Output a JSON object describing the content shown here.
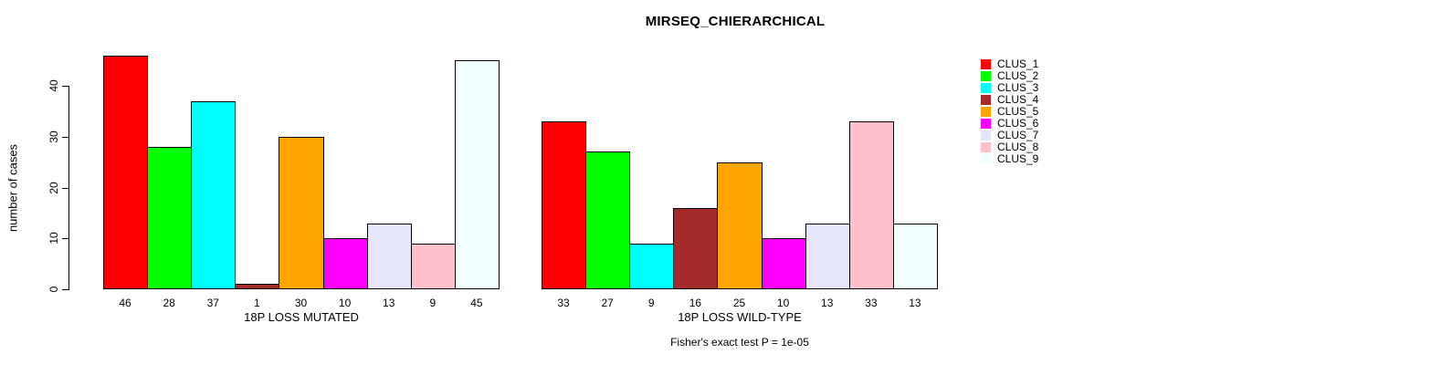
{
  "title": "MIRSEQ_CHIERARCHICAL",
  "y_axis": {
    "label": "number of cases",
    "ticks": [
      0,
      10,
      20,
      30,
      40
    ]
  },
  "footnote": "Fisher's exact test P = 1e-05",
  "legend": {
    "position": "right",
    "items": [
      {
        "label": "CLUS_1",
        "color": "#FF0000"
      },
      {
        "label": "CLUS_2",
        "color": "#00FF00"
      },
      {
        "label": "CLUS_3",
        "color": "#00FFFF"
      },
      {
        "label": "CLUS_4",
        "color": "#A52A2A"
      },
      {
        "label": "CLUS_5",
        "color": "#FFA500"
      },
      {
        "label": "CLUS_6",
        "color": "#FF00FF"
      },
      {
        "label": "CLUS_7",
        "color": "#E6E6FA"
      },
      {
        "label": "CLUS_8",
        "color": "#FFC0CB"
      },
      {
        "label": "CLUS_9",
        "color": "#F0FFFF"
      }
    ]
  },
  "chart_data": [
    {
      "type": "bar",
      "title": "MIRSEQ_CHIERARCHICAL",
      "xlabel": "18P LOSS MUTATED",
      "ylabel": "number of cases",
      "categories": [
        "CLUS_1",
        "CLUS_2",
        "CLUS_3",
        "CLUS_4",
        "CLUS_5",
        "CLUS_6",
        "CLUS_7",
        "CLUS_8",
        "CLUS_9"
      ],
      "values": [
        46,
        28,
        37,
        1,
        30,
        10,
        13,
        9,
        45
      ],
      "colors": [
        "#FF0000",
        "#00FF00",
        "#00FFFF",
        "#A52A2A",
        "#FFA500",
        "#FF00FF",
        "#E6E6FA",
        "#FFC0CB",
        "#F0FFFF"
      ],
      "ylim": [
        0,
        46
      ],
      "yticks": [
        0,
        10,
        20,
        30,
        40
      ],
      "grid": false,
      "bar_value_labels_shown": true
    },
    {
      "type": "bar",
      "title": "MIRSEQ_CHIERARCHICAL",
      "xlabel": "18P LOSS WILD-TYPE",
      "ylabel": "number of cases",
      "categories": [
        "CLUS_1",
        "CLUS_2",
        "CLUS_3",
        "CLUS_4",
        "CLUS_5",
        "CLUS_6",
        "CLUS_7",
        "CLUS_8",
        "CLUS_9"
      ],
      "values": [
        33,
        27,
        9,
        16,
        25,
        10,
        13,
        33,
        13
      ],
      "colors": [
        "#FF0000",
        "#00FF00",
        "#00FFFF",
        "#A52A2A",
        "#FFA500",
        "#FF00FF",
        "#E6E6FA",
        "#FFC0CB",
        "#F0FFFF"
      ],
      "ylim": [
        0,
        46
      ],
      "yticks": [
        0,
        10,
        20,
        30,
        40
      ],
      "grid": false,
      "bar_value_labels_shown": true
    }
  ]
}
